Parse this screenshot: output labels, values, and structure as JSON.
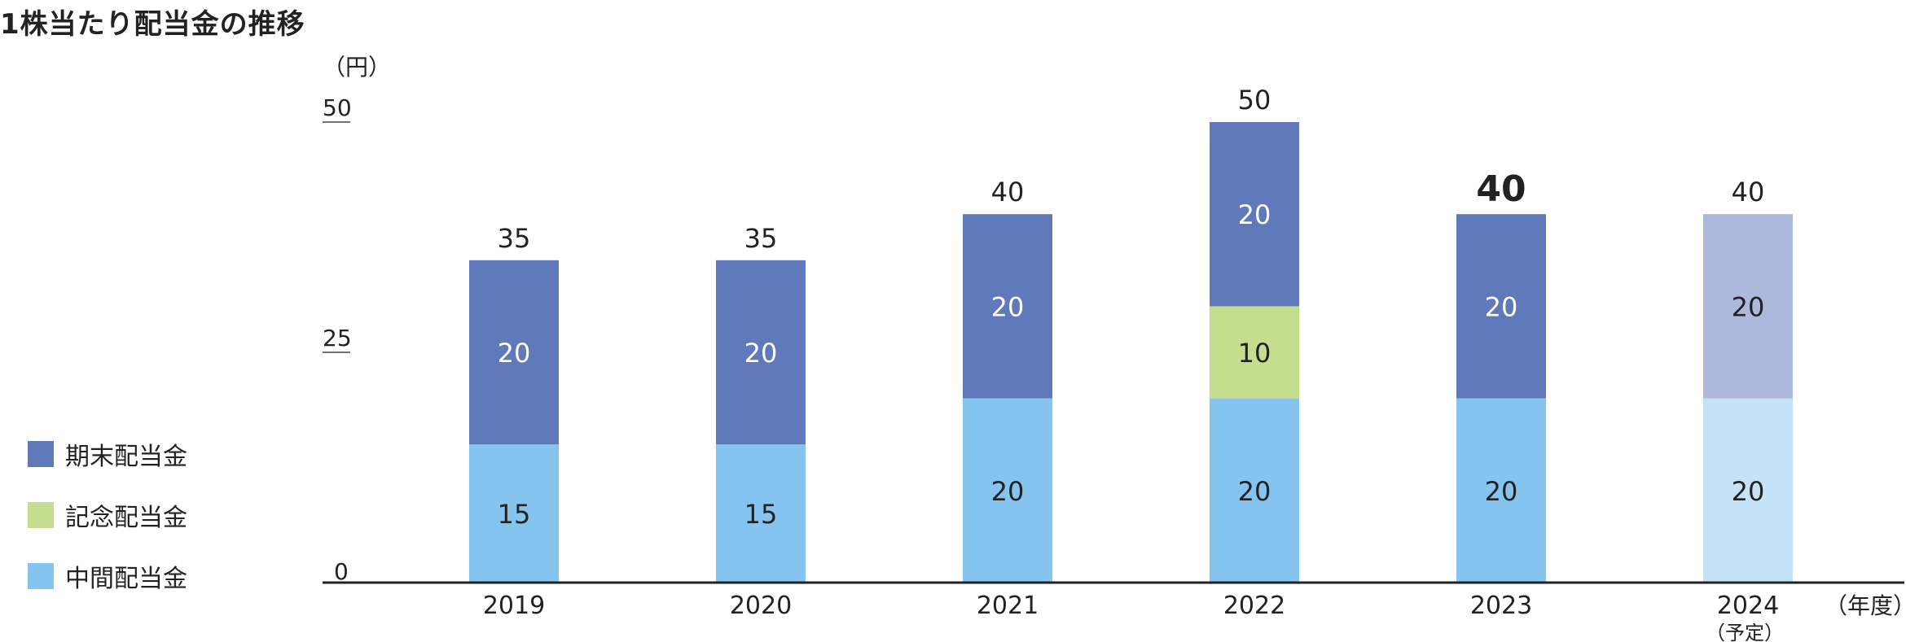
{
  "title": "1株当たり配当金の推移",
  "legend": [
    {
      "label": "期末配当金",
      "color": "#5f79bb"
    },
    {
      "label": "記念配当金",
      "color": "#c5dd8f"
    },
    {
      "label": "中間配当金",
      "color": "#85c4ee"
    }
  ],
  "chart_data": {
    "type": "bar",
    "stacked": true,
    "unit": "（円）",
    "x_unit": "（年度）",
    "categories": [
      "2019",
      "2020",
      "2021",
      "2022",
      "2023",
      "2024"
    ],
    "category_notes": [
      "",
      "",
      "",
      "",
      "",
      "（予定）"
    ],
    "ylim": [
      0,
      50
    ],
    "yticks": [
      0,
      25,
      50
    ],
    "series": [
      {
        "name": "中間配当金",
        "values": [
          15,
          15,
          20,
          20,
          20,
          20
        ],
        "color": "#85c4ee",
        "forecast_color": "#c5e3f7"
      },
      {
        "name": "記念配当金",
        "values": [
          0,
          0,
          0,
          10,
          0,
          0
        ],
        "color": "#c5dd8f",
        "forecast_color": "#c5dd8f"
      },
      {
        "name": "期末配当金",
        "values": [
          20,
          20,
          20,
          20,
          20,
          20
        ],
        "color": "#5f79bb",
        "forecast_color": "#aeb8dd"
      }
    ],
    "totals": [
      35,
      35,
      40,
      50,
      40,
      40
    ],
    "highlight_index": 4,
    "forecast_index": 5
  }
}
